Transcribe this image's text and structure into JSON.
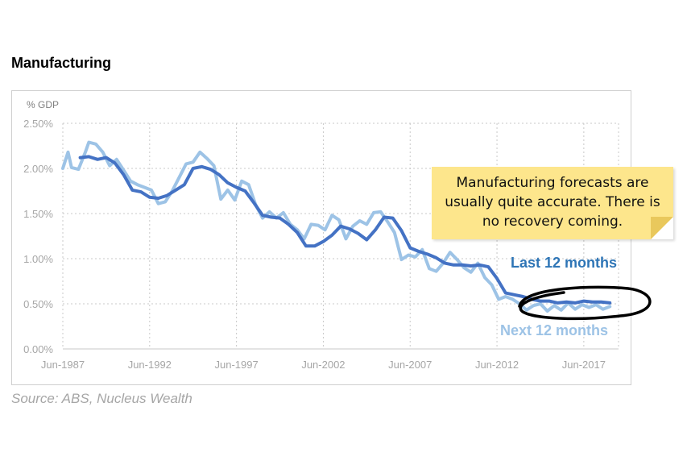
{
  "page": {
    "title": "Manufacturing",
    "source": "Source: ABS, Nucleus Wealth",
    "note": "Manufacturing forecasts are usually quite accurate. There is no recovery coming.",
    "label_last": "Last 12 months",
    "label_next": "Next 12 months"
  },
  "chart_data": {
    "type": "line",
    "title": "Manufacturing",
    "ylabel": "% GDP",
    "ylim": [
      0,
      2.5
    ],
    "yticks": [
      "0.00%",
      "0.50%",
      "1.00%",
      "1.50%",
      "2.00%",
      "2.50%"
    ],
    "xticks": [
      "Jun-1987",
      "Jun-1992",
      "Jun-1997",
      "Jun-2002",
      "Jun-2007",
      "Jun-2012",
      "Jun-2017"
    ],
    "xlim": [
      1987.5,
      2019.5
    ],
    "grid": true,
    "colors": {
      "last": "#4472c4",
      "next": "#9dc3e6"
    },
    "series": [
      {
        "name": "Last 12 months",
        "points": [
          [
            1988.5,
            2.12
          ],
          [
            1989,
            2.13
          ],
          [
            1989.5,
            2.1
          ],
          [
            1990,
            2.12
          ],
          [
            1990.5,
            2.06
          ],
          [
            1991,
            1.93
          ],
          [
            1991.5,
            1.76
          ],
          [
            1992,
            1.74
          ],
          [
            1992.5,
            1.68
          ],
          [
            1993,
            1.67
          ],
          [
            1993.5,
            1.7
          ],
          [
            1994,
            1.76
          ],
          [
            1994.5,
            1.82
          ],
          [
            1995,
            2.0
          ],
          [
            1995.5,
            2.02
          ],
          [
            1996,
            1.99
          ],
          [
            1996.5,
            1.93
          ],
          [
            1997,
            1.84
          ],
          [
            1997.5,
            1.79
          ],
          [
            1998,
            1.75
          ],
          [
            1998.5,
            1.62
          ],
          [
            1999,
            1.48
          ],
          [
            1999.5,
            1.46
          ],
          [
            2000,
            1.45
          ],
          [
            2000.5,
            1.38
          ],
          [
            2001,
            1.29
          ],
          [
            2001.5,
            1.14
          ],
          [
            2002,
            1.14
          ],
          [
            2002.5,
            1.19
          ],
          [
            2003,
            1.26
          ],
          [
            2003.5,
            1.36
          ],
          [
            2004,
            1.33
          ],
          [
            2004.5,
            1.28
          ],
          [
            2005,
            1.21
          ],
          [
            2005.5,
            1.32
          ],
          [
            2006,
            1.46
          ],
          [
            2006.5,
            1.45
          ],
          [
            2007,
            1.31
          ],
          [
            2007.5,
            1.12
          ],
          [
            2008,
            1.08
          ],
          [
            2008.5,
            1.05
          ],
          [
            2009,
            1.01
          ],
          [
            2009.5,
            0.95
          ],
          [
            2010,
            0.93
          ],
          [
            2010.5,
            0.93
          ],
          [
            2011,
            0.92
          ],
          [
            2011.5,
            0.93
          ],
          [
            2012,
            0.91
          ],
          [
            2012.5,
            0.78
          ],
          [
            2013,
            0.62
          ],
          [
            2013.5,
            0.6
          ],
          [
            2014,
            0.58
          ],
          [
            2014.5,
            0.55
          ],
          [
            2015,
            0.53
          ],
          [
            2015.5,
            0.53
          ],
          [
            2016,
            0.51
          ],
          [
            2016.5,
            0.52
          ],
          [
            2017,
            0.51
          ],
          [
            2017.5,
            0.53
          ],
          [
            2018,
            0.52
          ],
          [
            2018.5,
            0.52
          ],
          [
            2019,
            0.51
          ]
        ]
      },
      {
        "name": "Next 12 months",
        "points": [
          [
            1987.5,
            2.0
          ],
          [
            1987.8,
            2.18
          ],
          [
            1988,
            2.01
          ],
          [
            1988.4,
            1.99
          ],
          [
            1988.8,
            2.18
          ],
          [
            1989,
            2.29
          ],
          [
            1989.4,
            2.27
          ],
          [
            1989.8,
            2.18
          ],
          [
            1990.2,
            2.03
          ],
          [
            1990.6,
            2.1
          ],
          [
            1991,
            1.98
          ],
          [
            1991.4,
            1.86
          ],
          [
            1991.8,
            1.82
          ],
          [
            1992.2,
            1.79
          ],
          [
            1992.6,
            1.76
          ],
          [
            1993,
            1.61
          ],
          [
            1993.4,
            1.63
          ],
          [
            1993.8,
            1.75
          ],
          [
            1994.2,
            1.9
          ],
          [
            1994.6,
            2.05
          ],
          [
            1995,
            2.07
          ],
          [
            1995.4,
            2.18
          ],
          [
            1995.8,
            2.11
          ],
          [
            1996.2,
            2.03
          ],
          [
            1996.6,
            1.66
          ],
          [
            1997,
            1.76
          ],
          [
            1997.4,
            1.65
          ],
          [
            1997.8,
            1.86
          ],
          [
            1998.2,
            1.82
          ],
          [
            1998.6,
            1.6
          ],
          [
            1999,
            1.45
          ],
          [
            1999.4,
            1.52
          ],
          [
            1999.8,
            1.45
          ],
          [
            2000.2,
            1.51
          ],
          [
            2000.6,
            1.38
          ],
          [
            2001,
            1.32
          ],
          [
            2001.4,
            1.22
          ],
          [
            2001.8,
            1.38
          ],
          [
            2002.2,
            1.37
          ],
          [
            2002.6,
            1.32
          ],
          [
            2003,
            1.48
          ],
          [
            2003.4,
            1.43
          ],
          [
            2003.8,
            1.22
          ],
          [
            2004.2,
            1.36
          ],
          [
            2004.6,
            1.42
          ],
          [
            2005,
            1.38
          ],
          [
            2005.4,
            1.51
          ],
          [
            2005.8,
            1.52
          ],
          [
            2006.2,
            1.41
          ],
          [
            2006.6,
            1.29
          ],
          [
            2007,
            0.99
          ],
          [
            2007.4,
            1.04
          ],
          [
            2007.8,
            1.02
          ],
          [
            2008.2,
            1.1
          ],
          [
            2008.6,
            0.89
          ],
          [
            2009,
            0.86
          ],
          [
            2009.4,
            0.95
          ],
          [
            2009.8,
            1.07
          ],
          [
            2010.2,
            0.99
          ],
          [
            2010.6,
            0.9
          ],
          [
            2011,
            0.85
          ],
          [
            2011.4,
            0.95
          ],
          [
            2011.8,
            0.79
          ],
          [
            2012.2,
            0.71
          ],
          [
            2012.6,
            0.55
          ],
          [
            2013,
            0.58
          ],
          [
            2013.4,
            0.55
          ],
          [
            2013.8,
            0.5
          ],
          [
            2014.2,
            0.43
          ],
          [
            2014.6,
            0.48
          ],
          [
            2015,
            0.5
          ],
          [
            2015.4,
            0.42
          ],
          [
            2015.8,
            0.48
          ],
          [
            2016.2,
            0.43
          ],
          [
            2016.6,
            0.51
          ],
          [
            2017,
            0.44
          ],
          [
            2017.4,
            0.49
          ],
          [
            2017.8,
            0.46
          ],
          [
            2018.2,
            0.49
          ],
          [
            2018.6,
            0.44
          ],
          [
            2019,
            0.47
          ]
        ]
      }
    ]
  }
}
